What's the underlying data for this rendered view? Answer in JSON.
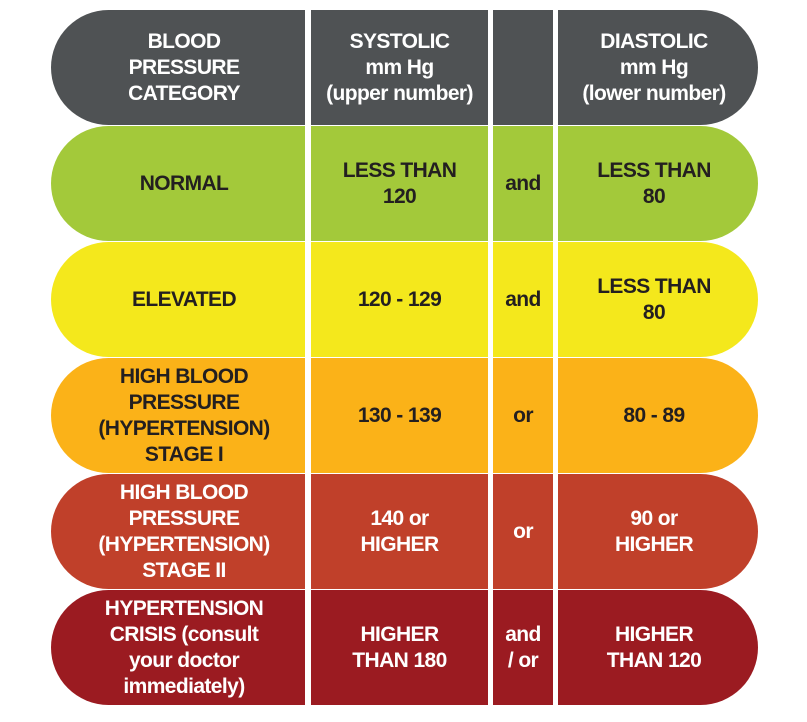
{
  "header": {
    "category": "BLOOD\nPRESSURE\nCATEGORY",
    "systolic": "SYSTOLIC\nmm Hg\n(upper number)",
    "connector": "",
    "diastolic": "DIASTOLIC\nmm Hg\n(lower number)",
    "color": "#4f5254",
    "text_color": "#ffffff"
  },
  "rows": [
    {
      "category": "NORMAL",
      "systolic": "LESS THAN\n120",
      "connector": "and",
      "diastolic": "LESS THAN\n80",
      "color": "#a3c93a",
      "text_color": "#231f20"
    },
    {
      "category": "ELEVATED",
      "systolic": "120 - 129",
      "connector": "and",
      "diastolic": "LESS THAN\n80",
      "color": "#f4e81c",
      "text_color": "#231f20"
    },
    {
      "category": "HIGH BLOOD\nPRESSURE\n(HYPERTENSION)\nSTAGE I",
      "systolic": "130 - 139",
      "connector": "or",
      "diastolic": "80 - 89",
      "color": "#fbb218",
      "text_color": "#231f20"
    },
    {
      "category": "HIGH BLOOD\nPRESSURE\n(HYPERTENSION)\nSTAGE II",
      "systolic": "140 or\nHIGHER",
      "connector": "or",
      "diastolic": "90 or\nHIGHER",
      "color": "#c0402a",
      "text_color": "#ffffff"
    },
    {
      "category": "HYPERTENSION\nCRISIS (consult\nyour doctor\nimmediately)",
      "systolic": "HIGHER\nTHAN 180",
      "connector": "and\n/ or",
      "diastolic": "HIGHER\nTHAN 120",
      "color": "#9b1b21",
      "text_color": "#ffffff"
    }
  ]
}
